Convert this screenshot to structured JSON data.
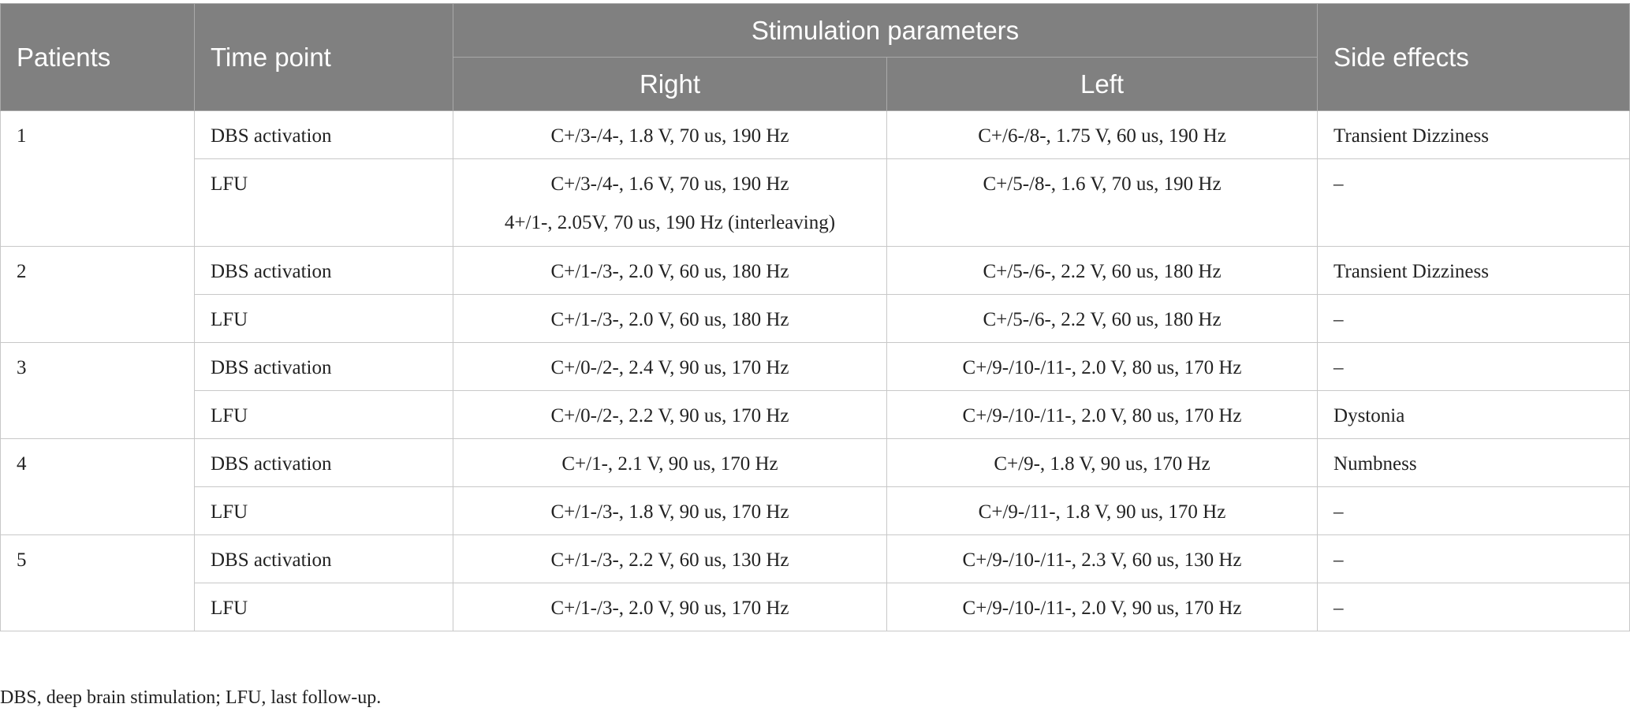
{
  "table": {
    "headers": {
      "patients": "Patients",
      "time_point": "Time point",
      "stimulation_parameters": "Stimulation parameters",
      "right": "Right",
      "left": "Left",
      "side_effects": "Side effects"
    },
    "patients": [
      {
        "id": "1",
        "rows": [
          {
            "time_point": "DBS activation",
            "right": [
              "C+/3-/4-, 1.8 V, 70 us, 190 Hz"
            ],
            "left": "C+/6-/8-, 1.75 V, 60 us, 190 Hz",
            "side_effects": "Transient Dizziness"
          },
          {
            "time_point": "LFU",
            "right": [
              "C+/3-/4-, 1.6 V, 70 us, 190 Hz",
              "4+/1-, 2.05V, 70 us, 190 Hz (interleaving)"
            ],
            "left": "C+/5-/8-, 1.6 V, 70 us, 190 Hz",
            "side_effects": "–"
          }
        ]
      },
      {
        "id": "2",
        "rows": [
          {
            "time_point": "DBS activation",
            "right": [
              "C+/1-/3-, 2.0 V, 60 us, 180 Hz"
            ],
            "left": "C+/5-/6-, 2.2 V, 60 us, 180 Hz",
            "side_effects": "Transient Dizziness"
          },
          {
            "time_point": "LFU",
            "right": [
              "C+/1-/3-, 2.0 V, 60 us, 180 Hz"
            ],
            "left": "C+/5-/6-, 2.2 V, 60 us, 180 Hz",
            "side_effects": "–"
          }
        ]
      },
      {
        "id": "3",
        "rows": [
          {
            "time_point": "DBS activation",
            "right": [
              "C+/0-/2-, 2.4 V, 90 us, 170 Hz"
            ],
            "left": "C+/9-/10-/11-, 2.0 V, 80 us, 170 Hz",
            "side_effects": "–"
          },
          {
            "time_point": "LFU",
            "right": [
              "C+/0-/2-, 2.2 V, 90 us, 170 Hz"
            ],
            "left": "C+/9-/10-/11-, 2.0 V, 80 us, 170 Hz",
            "side_effects": "Dystonia"
          }
        ]
      },
      {
        "id": "4",
        "rows": [
          {
            "time_point": "DBS activation",
            "right": [
              "C+/1-, 2.1 V, 90 us, 170 Hz"
            ],
            "left": "C+/9-, 1.8 V, 90 us, 170 Hz",
            "side_effects": "Numbness"
          },
          {
            "time_point": "LFU",
            "right": [
              "C+/1-/3-, 1.8 V, 90 us, 170 Hz"
            ],
            "left": "C+/9-/11-, 1.8 V, 90 us, 170 Hz",
            "side_effects": "–"
          }
        ]
      },
      {
        "id": "5",
        "rows": [
          {
            "time_point": "DBS activation",
            "right": [
              "C+/1-/3-, 2.2 V, 60 us, 130 Hz"
            ],
            "left": "C+/9-/10-/11-, 2.3 V, 60 us, 130 Hz",
            "side_effects": "–"
          },
          {
            "time_point": "LFU",
            "right": [
              "C+/1-/3-, 2.0 V, 90 us, 170 Hz"
            ],
            "left": "C+/9-/10-/11-, 2.0 V, 90 us, 170 Hz",
            "side_effects": "–"
          }
        ]
      }
    ]
  },
  "footnote": "DBS, deep brain stimulation; LFU, last follow-up."
}
